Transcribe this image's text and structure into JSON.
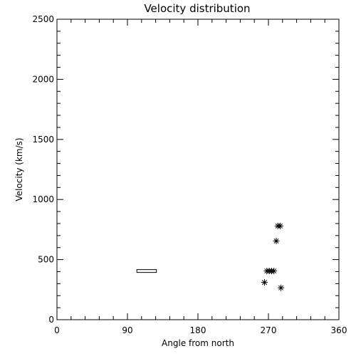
{
  "chart_data": {
    "type": "scatter",
    "title": "Velocity distribution",
    "xlabel": "Angle from north",
    "ylabel": "Velocity (km/s)",
    "xlim": [
      0,
      360
    ],
    "ylim": [
      0,
      2500
    ],
    "xticks": [
      "0",
      "90",
      "180",
      "270",
      "360"
    ],
    "yticks": [
      "0",
      "500",
      "1000",
      "1500",
      "2000",
      "2500"
    ],
    "grid": false,
    "marker": "asterisk",
    "points": [
      {
        "x": 282,
        "y": 780
      },
      {
        "x": 285,
        "y": 780
      },
      {
        "x": 280,
        "y": 655
      },
      {
        "x": 268,
        "y": 405
      },
      {
        "x": 271,
        "y": 405
      },
      {
        "x": 274,
        "y": 405
      },
      {
        "x": 277,
        "y": 405
      },
      {
        "x": 265,
        "y": 310
      },
      {
        "x": 286,
        "y": 265
      }
    ],
    "bars": [
      {
        "x_start": 102,
        "x_end": 127,
        "y": 405
      }
    ]
  }
}
